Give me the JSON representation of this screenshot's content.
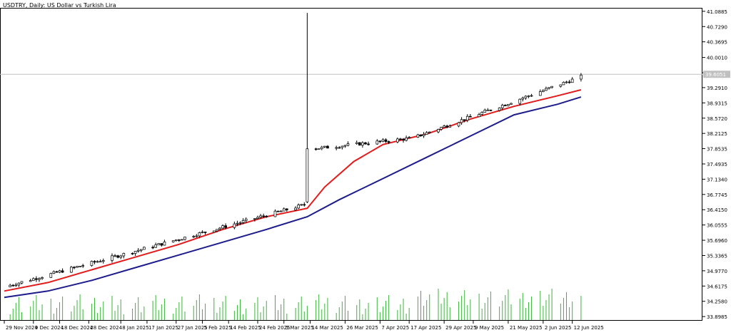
{
  "chart_data": {
    "type": "candlestick",
    "title": "USDTRY, Daily:  US Dollar vs Turkish Lira",
    "symbol": "USDTRY",
    "timeframe": "Daily",
    "y_ticks": [
      "41.0885",
      "40.7290",
      "40.3695",
      "40.0010",
      "39.6415",
      "39.2910",
      "38.9315",
      "38.5720",
      "38.2125",
      "37.8535",
      "37.4935",
      "37.1340",
      "36.7745",
      "36.4150",
      "36.0555",
      "35.6960",
      "35.3365",
      "34.9770",
      "34.6175",
      "34.2580",
      "33.8985"
    ],
    "ylim": [
      33.8,
      41.17
    ],
    "current_price": "39.6051",
    "x_ticks": [
      {
        "label": "29 Nov 2024",
        "day": 0
      },
      {
        "label": "9 Dec 2024",
        "day": 10
      },
      {
        "label": "18 Dec 2024",
        "day": 19
      },
      {
        "label": "28 Dec 2024",
        "day": 29
      },
      {
        "label": "8 Jan 2025",
        "day": 40
      },
      {
        "label": "17 Jan 2025",
        "day": 49
      },
      {
        "label": "27 Jan 2025",
        "day": 59
      },
      {
        "label": "5 Feb 2025",
        "day": 68
      },
      {
        "label": "14 Feb 2025",
        "day": 77
      },
      {
        "label": "24 Feb 2025",
        "day": 87
      },
      {
        "label": "5 Mar 2025",
        "day": 96
      },
      {
        "label": "14 Mar 2025",
        "day": 105
      },
      {
        "label": "26 Mar 2025",
        "day": 117
      },
      {
        "label": "7 Apr 2025",
        "day": 129
      },
      {
        "label": "17 Apr 2025",
        "day": 139
      },
      {
        "label": "29 Apr 2025",
        "day": 151
      },
      {
        "label": "9 May 2025",
        "day": 161
      },
      {
        "label": "21 May 2025",
        "day": 173
      },
      {
        "label": "2 Jun 2025",
        "day": 185
      },
      {
        "label": "12 Jun 2025",
        "day": 195
      }
    ],
    "x_range_days": [
      0,
      199
    ],
    "candles": [],
    "moving_averages": [
      {
        "color": "#e31b1b",
        "points": [
          [
            0,
            34.5
          ],
          [
            15,
            34.7
          ],
          [
            30,
            35.0
          ],
          [
            45,
            35.3
          ],
          [
            60,
            35.6
          ],
          [
            75,
            35.95
          ],
          [
            90,
            36.25
          ],
          [
            104,
            36.45
          ],
          [
            110,
            36.95
          ],
          [
            120,
            37.55
          ],
          [
            130,
            37.95
          ],
          [
            145,
            38.2
          ],
          [
            160,
            38.55
          ],
          [
            175,
            38.85
          ],
          [
            190,
            39.1
          ],
          [
            198,
            39.24
          ]
        ]
      },
      {
        "color": "#1c1c8c",
        "points": [
          [
            0,
            34.35
          ],
          [
            15,
            34.5
          ],
          [
            30,
            34.75
          ],
          [
            45,
            35.05
          ],
          [
            60,
            35.35
          ],
          [
            75,
            35.65
          ],
          [
            90,
            35.95
          ],
          [
            104,
            36.25
          ],
          [
            115,
            36.65
          ],
          [
            130,
            37.15
          ],
          [
            145,
            37.65
          ],
          [
            160,
            38.15
          ],
          [
            175,
            38.65
          ],
          [
            190,
            38.9
          ],
          [
            198,
            39.07
          ]
        ]
      }
    ],
    "volume_color": "#3cb43c",
    "colors": {
      "up_fill": "#ffffff",
      "down_fill": "#000000",
      "wick": "#000000",
      "grid": "#c8c8c8",
      "price_line": "#c0c0c0",
      "price_tag": "#c0c0c0"
    }
  }
}
